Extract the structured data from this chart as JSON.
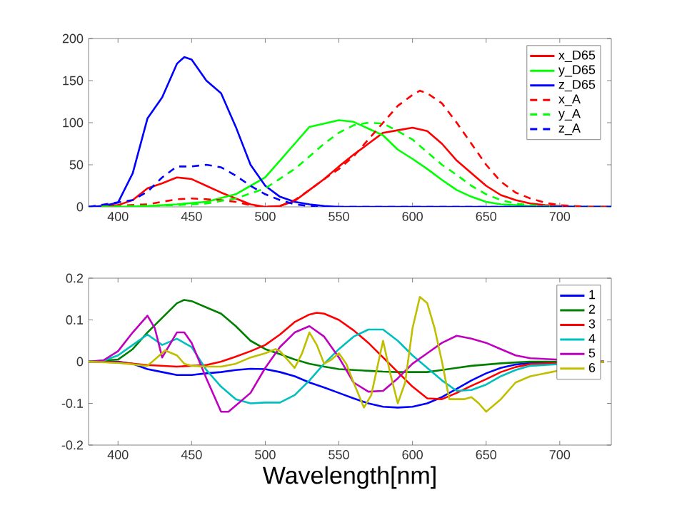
{
  "chart_data": [
    {
      "type": "line",
      "xlim": [
        380,
        735
      ],
      "xticks": [
        400,
        450,
        500,
        550,
        600,
        650,
        700
      ],
      "ylim": [
        0,
        200
      ],
      "yticks": [
        0,
        50,
        100,
        150,
        200
      ],
      "grid": false,
      "legend": "top right",
      "series": [
        {
          "name": "x_D65",
          "color": "#ff0000",
          "line_style": "solid",
          "x": [
            380,
            400,
            410,
            420,
            430,
            440,
            450,
            460,
            470,
            480,
            490,
            500,
            510,
            520,
            530,
            540,
            550,
            560,
            570,
            580,
            590,
            600,
            610,
            620,
            630,
            640,
            650,
            660,
            670,
            680,
            690,
            700,
            710,
            720,
            735
          ],
          "values": [
            0,
            2,
            8,
            22,
            28,
            35,
            33,
            25,
            17,
            10,
            3,
            0,
            1,
            7,
            20,
            33,
            48,
            62,
            75,
            88,
            91,
            94,
            90,
            75,
            55,
            40,
            25,
            14,
            8,
            4,
            2,
            1,
            0,
            0,
            0
          ]
        },
        {
          "name": "y_D65",
          "color": "#00ff00",
          "line_style": "solid",
          "x": [
            380,
            400,
            420,
            440,
            460,
            480,
            490,
            500,
            510,
            520,
            530,
            540,
            550,
            560,
            570,
            580,
            590,
            600,
            610,
            620,
            630,
            640,
            650,
            660,
            670,
            680,
            700,
            735
          ],
          "values": [
            0,
            0,
            1,
            3,
            6,
            15,
            25,
            35,
            55,
            75,
            95,
            99,
            103,
            101,
            93,
            85,
            68,
            57,
            45,
            32,
            20,
            12,
            6,
            3,
            2,
            1,
            0,
            0
          ]
        },
        {
          "name": "z_D65",
          "color": "#0000ff",
          "line_style": "solid",
          "x": [
            380,
            390,
            400,
            410,
            420,
            430,
            440,
            445,
            450,
            460,
            470,
            480,
            490,
            500,
            510,
            520,
            530,
            540,
            550,
            560,
            735
          ],
          "values": [
            0,
            1,
            5,
            40,
            105,
            130,
            170,
            178,
            175,
            150,
            135,
            95,
            50,
            25,
            12,
            6,
            3,
            1,
            0,
            0,
            0
          ]
        },
        {
          "name": "x_A",
          "color": "#ff0000",
          "line_style": "dashed",
          "x": [
            380,
            420,
            440,
            450,
            460,
            470,
            480,
            490,
            500,
            510,
            520,
            530,
            540,
            550,
            560,
            570,
            580,
            590,
            600,
            605,
            610,
            620,
            630,
            640,
            650,
            660,
            670,
            680,
            690,
            700,
            720,
            735
          ],
          "values": [
            0,
            3,
            9,
            10,
            9,
            8,
            6,
            2,
            0,
            1,
            8,
            20,
            33,
            45,
            60,
            80,
            100,
            120,
            133,
            138,
            135,
            123,
            100,
            75,
            50,
            30,
            17,
            10,
            5,
            2,
            0,
            0
          ]
        },
        {
          "name": "y_A",
          "color": "#00ff00",
          "line_style": "dashed",
          "x": [
            380,
            440,
            460,
            480,
            500,
            520,
            530,
            540,
            550,
            560,
            570,
            580,
            590,
            600,
            610,
            620,
            630,
            640,
            650,
            660,
            670,
            680,
            700,
            735
          ],
          "values": [
            0,
            2,
            4,
            10,
            22,
            45,
            60,
            75,
            88,
            97,
            100,
            99,
            90,
            80,
            65,
            50,
            38,
            25,
            15,
            8,
            4,
            2,
            0,
            0
          ]
        },
        {
          "name": "z_A",
          "color": "#0000ff",
          "line_style": "dashed",
          "x": [
            380,
            410,
            420,
            430,
            440,
            450,
            460,
            470,
            480,
            490,
            500,
            510,
            520,
            530,
            540,
            735
          ],
          "values": [
            0,
            8,
            18,
            35,
            48,
            48,
            50,
            47,
            37,
            25,
            15,
            8,
            3,
            1,
            0,
            0
          ]
        }
      ]
    },
    {
      "type": "line",
      "xlabel": "Wavelength[nm]",
      "xlim": [
        380,
        735
      ],
      "xticks": [
        400,
        450,
        500,
        550,
        600,
        650,
        700
      ],
      "ylim": [
        -0.2,
        0.2
      ],
      "yticks": [
        -0.2,
        -0.1,
        0,
        0.1,
        0.2
      ],
      "grid": false,
      "legend": "top right",
      "series": [
        {
          "name": "1",
          "color": "#0000ff",
          "line_style": "solid",
          "x": [
            380,
            400,
            410,
            420,
            430,
            440,
            450,
            460,
            470,
            480,
            490,
            500,
            510,
            520,
            530,
            540,
            550,
            560,
            570,
            580,
            590,
            600,
            610,
            620,
            630,
            640,
            650,
            660,
            670,
            680,
            730
          ],
          "values": [
            0,
            0,
            -0.005,
            -0.018,
            -0.025,
            -0.032,
            -0.032,
            -0.028,
            -0.025,
            -0.02,
            -0.017,
            -0.018,
            -0.025,
            -0.035,
            -0.05,
            -0.062,
            -0.075,
            -0.088,
            -0.1,
            -0.108,
            -0.11,
            -0.108,
            -0.1,
            -0.085,
            -0.065,
            -0.045,
            -0.028,
            -0.015,
            -0.007,
            -0.003,
            0
          ]
        },
        {
          "name": "2",
          "color": "#008000",
          "line_style": "solid",
          "x": [
            380,
            400,
            410,
            420,
            430,
            440,
            445,
            450,
            460,
            470,
            480,
            490,
            500,
            510,
            520,
            530,
            540,
            550,
            560,
            570,
            580,
            590,
            600,
            610,
            620,
            630,
            640,
            650,
            660,
            670,
            680,
            730
          ],
          "values": [
            0,
            0.005,
            0.03,
            0.07,
            0.105,
            0.14,
            0.148,
            0.145,
            0.13,
            0.115,
            0.085,
            0.05,
            0.03,
            0.018,
            0.005,
            -0.005,
            -0.012,
            -0.018,
            -0.02,
            -0.022,
            -0.024,
            -0.025,
            -0.025,
            -0.025,
            -0.02,
            -0.015,
            -0.01,
            -0.007,
            -0.004,
            -0.002,
            0,
            0
          ]
        },
        {
          "name": "3",
          "color": "#ff0000",
          "line_style": "solid",
          "x": [
            380,
            400,
            420,
            440,
            460,
            470,
            480,
            490,
            500,
            510,
            520,
            530,
            535,
            540,
            550,
            560,
            570,
            580,
            590,
            600,
            610,
            620,
            630,
            640,
            650,
            660,
            670,
            680,
            730
          ],
          "values": [
            0,
            -0.002,
            -0.008,
            -0.012,
            -0.008,
            0,
            0.012,
            0.025,
            0.04,
            0.065,
            0.095,
            0.113,
            0.117,
            0.115,
            0.1,
            0.075,
            0.045,
            0.01,
            -0.025,
            -0.06,
            -0.088,
            -0.09,
            -0.075,
            -0.058,
            -0.042,
            -0.025,
            -0.013,
            -0.006,
            0
          ]
        },
        {
          "name": "4",
          "color": "#00bfbf",
          "line_style": "solid",
          "x": [
            380,
            390,
            400,
            410,
            420,
            430,
            440,
            450,
            460,
            470,
            480,
            490,
            500,
            510,
            520,
            530,
            540,
            550,
            560,
            570,
            580,
            590,
            600,
            610,
            620,
            630,
            640,
            650,
            660,
            670,
            680,
            730
          ],
          "values": [
            0,
            0.002,
            0.015,
            0.04,
            0.065,
            0.04,
            0.055,
            0.035,
            -0.02,
            -0.06,
            -0.09,
            -0.1,
            -0.098,
            -0.098,
            -0.08,
            -0.045,
            -0.005,
            0.03,
            0.06,
            0.077,
            0.077,
            0.05,
            0.015,
            -0.015,
            -0.045,
            -0.07,
            -0.068,
            -0.055,
            -0.035,
            -0.02,
            -0.01,
            0
          ]
        },
        {
          "name": "5",
          "color": "#bf00bf",
          "line_style": "solid",
          "x": [
            380,
            390,
            400,
            410,
            420,
            425,
            430,
            440,
            445,
            450,
            460,
            470,
            475,
            480,
            490,
            500,
            510,
            520,
            530,
            540,
            550,
            560,
            570,
            580,
            590,
            600,
            610,
            620,
            630,
            640,
            650,
            660,
            670,
            680,
            730
          ],
          "values": [
            0,
            0.003,
            0.025,
            0.07,
            0.11,
            0.08,
            0.01,
            0.07,
            0.07,
            0.045,
            -0.04,
            -0.12,
            -0.12,
            -0.105,
            -0.075,
            -0.015,
            0.035,
            0.07,
            0.085,
            0.06,
            0.01,
            -0.05,
            -0.072,
            -0.07,
            -0.04,
            -0.005,
            0.02,
            0.045,
            0.062,
            0.055,
            0.045,
            0.03,
            0.015,
            0.008,
            0
          ]
        },
        {
          "name": "6",
          "color": "#bfbf00",
          "line_style": "solid",
          "x": [
            380,
            400,
            420,
            425,
            432,
            440,
            445,
            450,
            460,
            470,
            480,
            490,
            500,
            507,
            510,
            515,
            520,
            525,
            530,
            535,
            540,
            545,
            550,
            555,
            560,
            567,
            572,
            580,
            585,
            590,
            595,
            600,
            605,
            610,
            615,
            620,
            625,
            635,
            640,
            645,
            650,
            660,
            670,
            680,
            730
          ],
          "values": [
            0,
            -0.003,
            -0.01,
            0.005,
            0.027,
            0.015,
            -0.005,
            -0.01,
            -0.012,
            -0.012,
            -0.005,
            0.01,
            0.02,
            0.03,
            0.025,
            0.005,
            -0.015,
            0.02,
            0.07,
            0.04,
            -0.005,
            0.005,
            0.02,
            -0.005,
            -0.05,
            -0.11,
            -0.08,
            0.05,
            -0.03,
            -0.1,
            -0.05,
            0.08,
            0.155,
            0.14,
            0.08,
            0,
            -0.09,
            -0.09,
            -0.085,
            -0.1,
            -0.12,
            -0.09,
            -0.05,
            -0.035,
            0
          ]
        }
      ]
    }
  ]
}
